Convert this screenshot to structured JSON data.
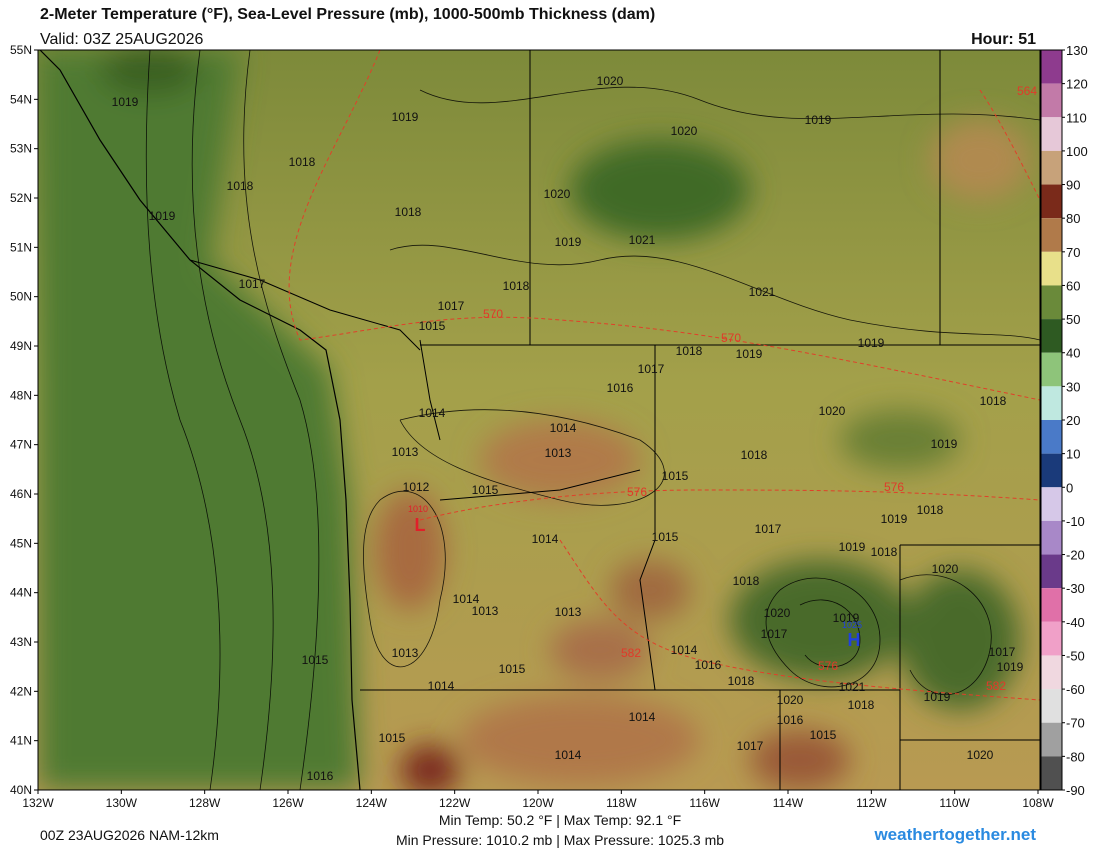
{
  "header": {
    "title": "2-Meter Temperature (°F), Sea-Level Pressure (mb), 1000-500mb Thickness (dam)",
    "valid": "Valid: 03Z 25AUG2026",
    "hour": "Hour: 51"
  },
  "map": {
    "lat_labels": [
      "55N",
      "54N",
      "53N",
      "52N",
      "51N",
      "50N",
      "49N",
      "48N",
      "47N",
      "46N",
      "45N",
      "44N",
      "43N",
      "42N",
      "41N",
      "40N"
    ],
    "lon_labels": [
      "132W",
      "130W",
      "128W",
      "126W",
      "124W",
      "122W",
      "120W",
      "118W",
      "116W",
      "114W",
      "112W",
      "110W",
      "108W"
    ],
    "pressure_labels": [
      "1019",
      "1019",
      "1018",
      "1018",
      "1019",
      "1018",
      "1020",
      "1020",
      "1019",
      "1020",
      "1019",
      "1021",
      "1021",
      "1017",
      "1018",
      "1017",
      "1015",
      "1018",
      "1019",
      "1019",
      "1017",
      "1016",
      "1020",
      "1018",
      "1014",
      "1014",
      "1013",
      "1013",
      "1019",
      "1018",
      "1015",
      "1015",
      "1012",
      "1019",
      "1018",
      "1017",
      "1014",
      "1015",
      "1019",
      "1018",
      "1020",
      "1018",
      "1014",
      "1013",
      "1013",
      "1020",
      "1019",
      "1017",
      "1014",
      "1017",
      "1019",
      "1013",
      "1015",
      "1016",
      "1015",
      "1018",
      "1021",
      "1014",
      "1019",
      "1020",
      "1018",
      "1014",
      "1016",
      "1015",
      "1017",
      "1015",
      "1014",
      "1020",
      "1016"
    ],
    "thickness_labels": [
      "564",
      "570",
      "570",
      "576",
      "576",
      "576",
      "582",
      "582"
    ],
    "low": {
      "letter": "L",
      "value": "1010"
    },
    "high": {
      "letter": "H",
      "value": "1025"
    }
  },
  "colorbar": {
    "ticks": [
      130,
      120,
      110,
      100,
      90,
      80,
      70,
      60,
      50,
      40,
      30,
      20,
      10,
      0,
      -10,
      -20,
      -30,
      -40,
      -50,
      -60,
      -70,
      -80,
      -90
    ],
    "colors": [
      "#8e3b8e",
      "#c27aa8",
      "#e6c8d8",
      "#c7a27a",
      "#7a2a1a",
      "#b07a4a",
      "#e8e08a",
      "#6a8a3a",
      "#2e5a22",
      "#8ec47a",
      "#bfe8e0",
      "#4a7ac8",
      "#1a3a7a",
      "#d6c8e8",
      "#a888c8",
      "#6a3a8a",
      "#e070a8",
      "#f0a0c8",
      "#f0d8e0",
      "#e0e0e0",
      "#a0a0a0",
      "#505050",
      "#5ae0a0"
    ]
  },
  "footer": {
    "run": "00Z 23AUG2026 NAM-12km",
    "temps": "Min Temp:  50.2 °F | Max Temp:  92.1 °F",
    "pressures": "Min Pressure: 1010.2 mb | Max Pressure: 1025.3 mb",
    "site": "weathertogether.net"
  }
}
